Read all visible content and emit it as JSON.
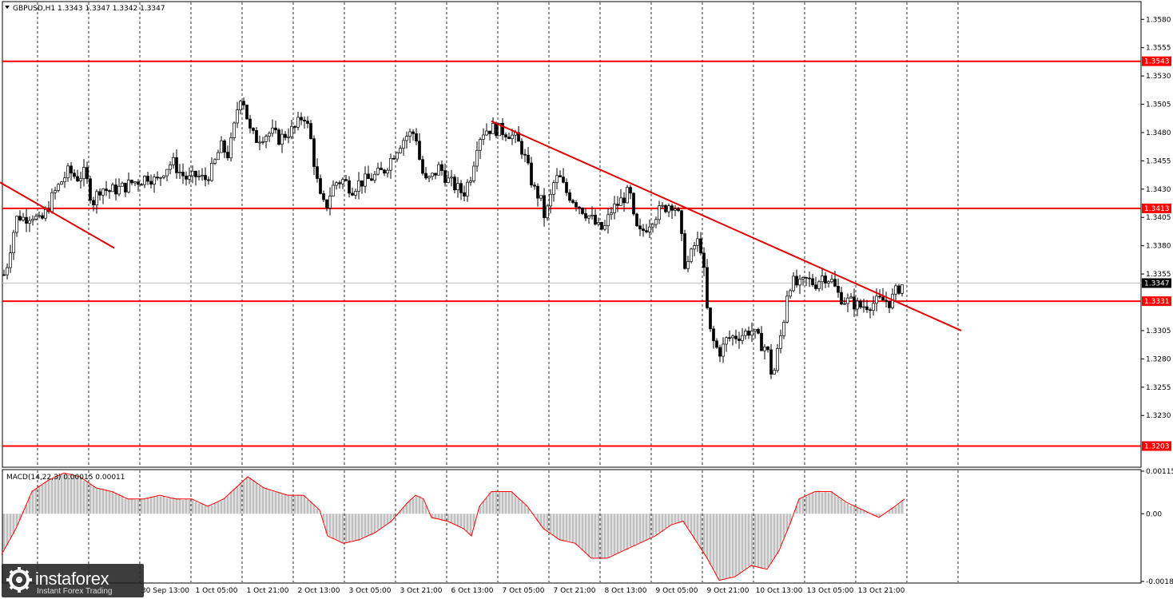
{
  "header": {
    "title": "GBPUSD,H1  1.3343 1.3347 1.3342 1.3347",
    "macd_title": "MACD(14,22,3) 0.00015 0.00011"
  },
  "brand": {
    "name": "instaforex",
    "tagline": "Instant Forex Trading"
  },
  "colors": {
    "level": "#ff0000",
    "trend": "#e00000",
    "candle": "#000000",
    "hist": "#c0c0c0",
    "signal": "#ff0000"
  },
  "chart_data": [
    {
      "type": "candlestick",
      "symbol": "GBPUSD",
      "timeframe": "H1",
      "ylim": [
        1.3185,
        1.3595
      ],
      "yticks": [
        "1.3580",
        "1.3555",
        "1.3530",
        "1.3505",
        "1.3480",
        "1.3455",
        "1.3430",
        "1.3405",
        "1.3380",
        "1.3355",
        "1.3305",
        "1.3280",
        "1.3255",
        "1.3230"
      ],
      "x_labels": [
        "30 Sep 13:00",
        "1 Oct 05:00",
        "1 Oct 21:00",
        "2 Oct 13:00",
        "3 Oct 05:00",
        "3 Oct 21:00",
        "6 Oct 13:00",
        "7 Oct 05:00",
        "7 Oct 21:00",
        "8 Oct 13:00",
        "9 Oct 05:00",
        "9 Oct 21:00",
        "10 Oct 13:00",
        "13 Oct 05:00",
        "13 Oct 21:00"
      ],
      "last_price": 1.3347,
      "last_price_label": "1.3347",
      "horizontal_levels": [
        {
          "value": 1.3543,
          "label": "1.3543"
        },
        {
          "value": 1.3413,
          "label": "1.3413"
        },
        {
          "value": 1.3331,
          "label": "1.3331"
        },
        {
          "value": 1.3203,
          "label": "1.3203"
        }
      ],
      "trendlines": [
        {
          "start": [
            0,
            1.3436
          ],
          "end": [
            143,
            1.3378
          ]
        },
        {
          "start": [
            615,
            1.349
          ],
          "end": [
            1203,
            1.3305
          ]
        }
      ],
      "close_path": [
        [
          0,
          1.3345
        ],
        [
          8,
          1.336
        ],
        [
          16,
          1.339
        ],
        [
          22,
          1.3407
        ],
        [
          30,
          1.3404
        ],
        [
          40,
          1.3408
        ],
        [
          50,
          1.34
        ],
        [
          58,
          1.341
        ],
        [
          66,
          1.3424
        ],
        [
          76,
          1.3436
        ],
        [
          86,
          1.3446
        ],
        [
          96,
          1.344
        ],
        [
          106,
          1.3444
        ],
        [
          116,
          1.3418
        ],
        [
          126,
          1.3432
        ],
        [
          136,
          1.3428
        ],
        [
          146,
          1.343
        ],
        [
          156,
          1.3432
        ],
        [
          166,
          1.3436
        ],
        [
          176,
          1.3438
        ],
        [
          186,
          1.3442
        ],
        [
          196,
          1.3436
        ],
        [
          206,
          1.3448
        ],
        [
          216,
          1.3454
        ],
        [
          226,
          1.3444
        ],
        [
          236,
          1.3438
        ],
        [
          246,
          1.3442
        ],
        [
          256,
          1.3438
        ],
        [
          266,
          1.3448
        ],
        [
          276,
          1.3468
        ],
        [
          286,
          1.346
        ],
        [
          294,
          1.3488
        ],
        [
          300,
          1.3514
        ],
        [
          306,
          1.3506
        ],
        [
          312,
          1.3482
        ],
        [
          320,
          1.3474
        ],
        [
          330,
          1.3478
        ],
        [
          340,
          1.348
        ],
        [
          350,
          1.3474
        ],
        [
          360,
          1.348
        ],
        [
          370,
          1.3484
        ],
        [
          380,
          1.3497
        ],
        [
          388,
          1.3478
        ],
        [
          396,
          1.344
        ],
        [
          402,
          1.3418
        ],
        [
          408,
          1.3414
        ],
        [
          414,
          1.3428
        ],
        [
          420,
          1.3436
        ],
        [
          430,
          1.3438
        ],
        [
          440,
          1.343
        ],
        [
          450,
          1.3436
        ],
        [
          460,
          1.3438
        ],
        [
          470,
          1.3442
        ],
        [
          480,
          1.3446
        ],
        [
          490,
          1.3458
        ],
        [
          500,
          1.347
        ],
        [
          510,
          1.3478
        ],
        [
          520,
          1.348
        ],
        [
          526,
          1.3452
        ],
        [
          532,
          1.3436
        ],
        [
          540,
          1.344
        ],
        [
          550,
          1.345
        ],
        [
          560,
          1.3438
        ],
        [
          570,
          1.3432
        ],
        [
          580,
          1.3426
        ],
        [
          590,
          1.3444
        ],
        [
          598,
          1.3474
        ],
        [
          606,
          1.3482
        ],
        [
          616,
          1.3484
        ],
        [
          626,
          1.3482
        ],
        [
          636,
          1.348
        ],
        [
          646,
          1.3474
        ],
        [
          654,
          1.3464
        ],
        [
          660,
          1.345
        ],
        [
          668,
          1.343
        ],
        [
          676,
          1.3422
        ],
        [
          682,
          1.3404
        ],
        [
          688,
          1.342
        ],
        [
          694,
          1.3438
        ],
        [
          700,
          1.344
        ],
        [
          708,
          1.3428
        ],
        [
          716,
          1.3422
        ],
        [
          724,
          1.3416
        ],
        [
          732,
          1.341
        ],
        [
          740,
          1.3404
        ],
        [
          748,
          1.3396
        ],
        [
          756,
          1.3394
        ],
        [
          764,
          1.341
        ],
        [
          772,
          1.3416
        ],
        [
          780,
          1.3422
        ],
        [
          788,
          1.3428
        ],
        [
          794,
          1.3398
        ],
        [
          800,
          1.339
        ],
        [
          808,
          1.3396
        ],
        [
          816,
          1.3404
        ],
        [
          824,
          1.341
        ],
        [
          832,
          1.3414
        ],
        [
          840,
          1.3418
        ],
        [
          848,
          1.3412
        ],
        [
          852,
          1.339
        ],
        [
          858,
          1.336
        ],
        [
          864,
          1.337
        ],
        [
          870,
          1.3382
        ],
        [
          876,
          1.3384
        ],
        [
          882,
          1.335
        ],
        [
          886,
          1.3314
        ],
        [
          890,
          1.33
        ],
        [
          896,
          1.329
        ],
        [
          902,
          1.3286
        ],
        [
          910,
          1.3298
        ],
        [
          920,
          1.33
        ],
        [
          930,
          1.3302
        ],
        [
          940,
          1.3306
        ],
        [
          948,
          1.3298
        ],
        [
          954,
          1.3292
        ],
        [
          960,
          1.329
        ],
        [
          964,
          1.327
        ],
        [
          968,
          1.3266
        ],
        [
          974,
          1.329
        ],
        [
          980,
          1.331
        ],
        [
          986,
          1.3344
        ],
        [
          992,
          1.3348
        ],
        [
          1000,
          1.3344
        ],
        [
          1010,
          1.335
        ],
        [
          1020,
          1.3346
        ],
        [
          1030,
          1.3354
        ],
        [
          1040,
          1.335
        ],
        [
          1048,
          1.3338
        ],
        [
          1056,
          1.3332
        ],
        [
          1066,
          1.333
        ],
        [
          1076,
          1.3326
        ],
        [
          1086,
          1.3328
        ],
        [
          1096,
          1.333
        ],
        [
          1106,
          1.3332
        ],
        [
          1114,
          1.333
        ],
        [
          1120,
          1.3338
        ],
        [
          1126,
          1.3344
        ],
        [
          1132,
          1.3347
        ]
      ]
    },
    {
      "type": "macd",
      "title": "MACD(14,22,3) 0.00015 0.00011",
      "ylim": [
        -0.00183,
        0.00115
      ],
      "yticks": [
        "0.00115",
        "0.00",
        "-0.00183"
      ],
      "signal_path": [
        [
          2,
          -0.0011
        ],
        [
          20,
          -0.0004
        ],
        [
          40,
          0.0006
        ],
        [
          60,
          0.0009
        ],
        [
          80,
          0.0011
        ],
        [
          100,
          0.001
        ],
        [
          120,
          0.0007
        ],
        [
          140,
          0.0006
        ],
        [
          160,
          0.0004
        ],
        [
          180,
          0.0004
        ],
        [
          200,
          0.0005
        ],
        [
          220,
          0.0004
        ],
        [
          240,
          0.0004
        ],
        [
          260,
          0.0002
        ],
        [
          280,
          0.0004
        ],
        [
          300,
          0.0008
        ],
        [
          310,
          0.001
        ],
        [
          330,
          0.0007
        ],
        [
          360,
          0.0005
        ],
        [
          380,
          0.0005
        ],
        [
          400,
          0.0001
        ],
        [
          410,
          -0.0006
        ],
        [
          430,
          -0.0008
        ],
        [
          450,
          -0.0007
        ],
        [
          470,
          -0.0005
        ],
        [
          490,
          -0.0002
        ],
        [
          510,
          0.0003
        ],
        [
          520,
          0.0005
        ],
        [
          530,
          0.0004
        ],
        [
          540,
          -0.0001
        ],
        [
          560,
          -0.0002
        ],
        [
          580,
          -0.0004
        ],
        [
          590,
          -0.0006
        ],
        [
          600,
          0.0002
        ],
        [
          615,
          0.0006
        ],
        [
          640,
          0.0006
        ],
        [
          660,
          0.0002
        ],
        [
          680,
          -0.0004
        ],
        [
          700,
          -0.0007
        ],
        [
          720,
          -0.0008
        ],
        [
          740,
          -0.0012
        ],
        [
          760,
          -0.0012
        ],
        [
          780,
          -0.001
        ],
        [
          800,
          -0.0008
        ],
        [
          820,
          -0.0006
        ],
        [
          840,
          -0.0003
        ],
        [
          855,
          -0.0002
        ],
        [
          870,
          -0.0007
        ],
        [
          885,
          -0.0012
        ],
        [
          900,
          -0.0018
        ],
        [
          920,
          -0.0017
        ],
        [
          940,
          -0.0014
        ],
        [
          960,
          -0.0015
        ],
        [
          975,
          -0.001
        ],
        [
          990,
          -0.0002
        ],
        [
          1000,
          0.0004
        ],
        [
          1020,
          0.0006
        ],
        [
          1040,
          0.0006
        ],
        [
          1060,
          0.0003
        ],
        [
          1080,
          0.0001
        ],
        [
          1100,
          -0.0001
        ],
        [
          1120,
          0.0002
        ],
        [
          1132,
          0.0004
        ]
      ]
    }
  ]
}
